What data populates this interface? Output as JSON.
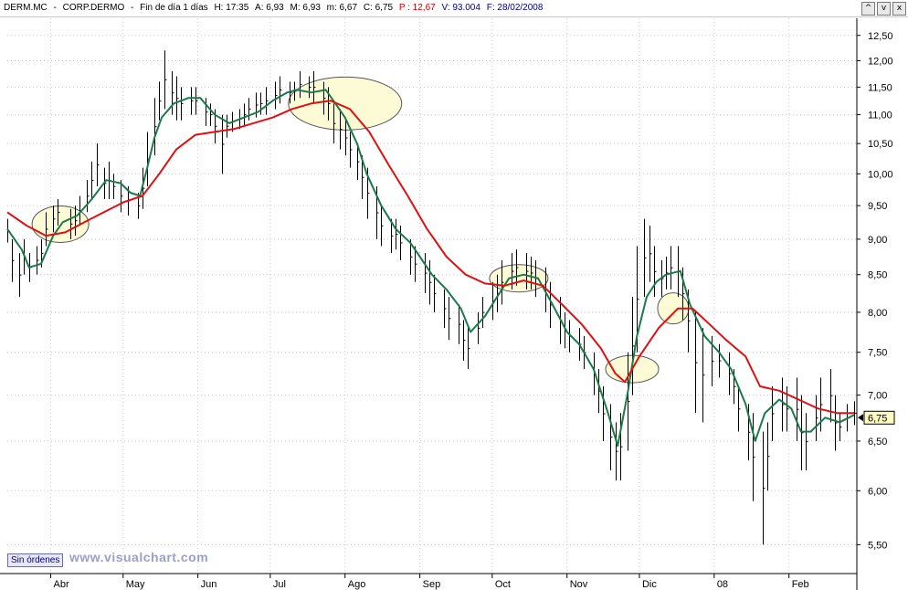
{
  "header": {
    "symbol": "DERM.MC",
    "name": "CORP.DERMO",
    "period": "Fin de día 1 días",
    "time": "H: 17:35",
    "open": "A: 6,93",
    "high": "M: 6,93",
    "low": "m: 6,67",
    "close": "C: 6,75",
    "pct": "P : 12,67",
    "volume": "V: 93.004",
    "date": "F: 28/02/2008"
  },
  "window_controls": [
    "^",
    "v",
    "x"
  ],
  "orders_label": "Sin órdenes",
  "watermark": "www.visualchart.com",
  "colors": {
    "bars": "#000000",
    "ma_fast": "#1a7a4a",
    "ma_slow": "#e01010",
    "ellipse_fill": "#fdfbd6",
    "ellipse_stroke": "#555555",
    "last_price_bg": "#ffffc0",
    "grid": "#c8c8c8"
  },
  "chart_data": {
    "type": "line",
    "y_axis": {
      "ticks": [
        "12,50",
        "12,00",
        "11,50",
        "11,00",
        "10,50",
        "10,00",
        "9,50",
        "9,00",
        "8,50",
        "8,00",
        "7,50",
        "7,00",
        "6,50",
        "6,00",
        "5,50"
      ],
      "tick_values": [
        12.5,
        12.0,
        11.5,
        11.0,
        10.5,
        10.0,
        9.5,
        9.0,
        8.5,
        8.0,
        7.5,
        7.0,
        6.5,
        6.0,
        5.5
      ],
      "scale": "log",
      "range": [
        5.25,
        12.85
      ],
      "position": "right"
    },
    "x_axis": {
      "labels": [
        "Abr",
        "May",
        "Jun",
        "Jul",
        "Ago",
        "Sep",
        "Oct",
        "Nov",
        "Dic",
        "08",
        "Feb"
      ],
      "range": [
        "2007-03-14",
        "2008-02-28"
      ]
    },
    "grid": true,
    "last_price": "6,75",
    "series": [
      {
        "style": "ma_fast",
        "points": [
          [
            "2007-03-14",
            9.15
          ],
          [
            "2007-03-20",
            8.85
          ],
          [
            "2007-03-23",
            8.6
          ],
          [
            "2007-03-28",
            8.65
          ],
          [
            "2007-04-02",
            9.05
          ],
          [
            "2007-04-06",
            9.25
          ],
          [
            "2007-04-12",
            9.35
          ],
          [
            "2007-04-18",
            9.6
          ],
          [
            "2007-04-24",
            9.9
          ],
          [
            "2007-04-30",
            9.85
          ],
          [
            "2007-05-04",
            9.7
          ],
          [
            "2007-05-08",
            9.65
          ],
          [
            "2007-05-11",
            10.1
          ],
          [
            "2007-05-14",
            10.6
          ],
          [
            "2007-05-17",
            10.95
          ],
          [
            "2007-05-22",
            11.2
          ],
          [
            "2007-05-28",
            11.3
          ],
          [
            "2007-06-02",
            11.3
          ],
          [
            "2007-06-08",
            11.0
          ],
          [
            "2007-06-14",
            10.85
          ],
          [
            "2007-06-20",
            10.95
          ],
          [
            "2007-06-26",
            11.05
          ],
          [
            "2007-07-02",
            11.25
          ],
          [
            "2007-07-08",
            11.4
          ],
          [
            "2007-07-12",
            11.45
          ],
          [
            "2007-07-18",
            11.4
          ],
          [
            "2007-07-24",
            11.45
          ],
          [
            "2007-07-28",
            11.2
          ],
          [
            "2007-08-01",
            10.95
          ],
          [
            "2007-08-06",
            10.5
          ],
          [
            "2007-08-10",
            10.0
          ],
          [
            "2007-08-16",
            9.5
          ],
          [
            "2007-08-22",
            9.15
          ],
          [
            "2007-08-28",
            8.95
          ],
          [
            "2007-09-01",
            8.75
          ],
          [
            "2007-09-06",
            8.5
          ],
          [
            "2007-09-12",
            8.3
          ],
          [
            "2007-09-18",
            8.05
          ],
          [
            "2007-09-22",
            7.75
          ],
          [
            "2007-09-28",
            7.95
          ],
          [
            "2007-10-03",
            8.2
          ],
          [
            "2007-10-08",
            8.45
          ],
          [
            "2007-10-14",
            8.5
          ],
          [
            "2007-10-20",
            8.45
          ],
          [
            "2007-10-26",
            8.1
          ],
          [
            "2007-11-01",
            7.75
          ],
          [
            "2007-11-06",
            7.6
          ],
          [
            "2007-11-12",
            7.3
          ],
          [
            "2007-11-18",
            6.8
          ],
          [
            "2007-11-22",
            6.45
          ],
          [
            "2007-11-26",
            7.0
          ],
          [
            "2007-11-30",
            7.7
          ],
          [
            "2007-12-04",
            8.2
          ],
          [
            "2007-12-08",
            8.4
          ],
          [
            "2007-12-12",
            8.5
          ],
          [
            "2007-12-18",
            8.55
          ],
          [
            "2007-12-22",
            8.1
          ],
          [
            "2007-12-28",
            7.7
          ],
          [
            "2008-01-03",
            7.5
          ],
          [
            "2008-01-08",
            7.3
          ],
          [
            "2008-01-14",
            6.9
          ],
          [
            "2008-01-18",
            6.5
          ],
          [
            "2008-01-22",
            6.8
          ],
          [
            "2008-01-28",
            6.95
          ],
          [
            "2008-02-02",
            6.85
          ],
          [
            "2008-02-06",
            6.6
          ],
          [
            "2008-02-10",
            6.6
          ],
          [
            "2008-02-16",
            6.75
          ],
          [
            "2008-02-22",
            6.7
          ],
          [
            "2008-02-28",
            6.78
          ]
        ]
      },
      {
        "style": "ma_slow",
        "points": [
          [
            "2007-03-14",
            9.4
          ],
          [
            "2007-03-22",
            9.2
          ],
          [
            "2007-03-30",
            9.05
          ],
          [
            "2007-04-07",
            9.1
          ],
          [
            "2007-04-15",
            9.25
          ],
          [
            "2007-04-23",
            9.4
          ],
          [
            "2007-05-01",
            9.55
          ],
          [
            "2007-05-09",
            9.65
          ],
          [
            "2007-05-16",
            10.0
          ],
          [
            "2007-05-23",
            10.4
          ],
          [
            "2007-05-31",
            10.65
          ],
          [
            "2007-06-08",
            10.7
          ],
          [
            "2007-06-16",
            10.75
          ],
          [
            "2007-06-24",
            10.85
          ],
          [
            "2007-07-02",
            10.95
          ],
          [
            "2007-07-10",
            11.1
          ],
          [
            "2007-07-18",
            11.2
          ],
          [
            "2007-07-26",
            11.25
          ],
          [
            "2007-08-03",
            11.1
          ],
          [
            "2007-08-11",
            10.7
          ],
          [
            "2007-08-19",
            10.15
          ],
          [
            "2007-08-27",
            9.65
          ],
          [
            "2007-09-04",
            9.15
          ],
          [
            "2007-09-12",
            8.75
          ],
          [
            "2007-09-20",
            8.5
          ],
          [
            "2007-09-28",
            8.38
          ],
          [
            "2007-10-06",
            8.35
          ],
          [
            "2007-10-14",
            8.42
          ],
          [
            "2007-10-22",
            8.35
          ],
          [
            "2007-10-30",
            8.1
          ],
          [
            "2007-11-07",
            7.85
          ],
          [
            "2007-11-15",
            7.55
          ],
          [
            "2007-11-21",
            7.25
          ],
          [
            "2007-11-25",
            7.15
          ],
          [
            "2007-12-01",
            7.45
          ],
          [
            "2007-12-09",
            7.8
          ],
          [
            "2007-12-17",
            8.05
          ],
          [
            "2007-12-23",
            8.05
          ],
          [
            "2007-12-30",
            7.85
          ],
          [
            "2008-01-06",
            7.65
          ],
          [
            "2008-01-14",
            7.45
          ],
          [
            "2008-01-20",
            7.1
          ],
          [
            "2008-01-28",
            7.05
          ],
          [
            "2008-02-05",
            6.95
          ],
          [
            "2008-02-13",
            6.85
          ],
          [
            "2008-02-21",
            6.8
          ],
          [
            "2008-02-28",
            6.8
          ]
        ]
      }
    ],
    "price_bars": [
      [
        "2007-03-14",
        9.3,
        8.95
      ],
      [
        "2007-03-16",
        9.0,
        8.4
      ],
      [
        "2007-03-19",
        8.8,
        8.2
      ],
      [
        "2007-03-21",
        9.0,
        8.5
      ],
      [
        "2007-03-23",
        8.8,
        8.4
      ],
      [
        "2007-03-26",
        8.9,
        8.5
      ],
      [
        "2007-03-28",
        9.0,
        8.6
      ],
      [
        "2007-03-30",
        9.4,
        8.9
      ],
      [
        "2007-04-02",
        9.5,
        9.1
      ],
      [
        "2007-04-04",
        9.6,
        9.2
      ],
      [
        "2007-04-09",
        9.45,
        9.0
      ],
      [
        "2007-04-11",
        9.5,
        9.05
      ],
      [
        "2007-04-13",
        9.65,
        9.2
      ],
      [
        "2007-04-16",
        9.9,
        9.4
      ],
      [
        "2007-04-18",
        10.2,
        9.6
      ],
      [
        "2007-04-20",
        10.5,
        9.8
      ],
      [
        "2007-04-23",
        10.1,
        9.6
      ],
      [
        "2007-04-25",
        10.2,
        9.6
      ],
      [
        "2007-04-27",
        10.0,
        9.6
      ],
      [
        "2007-04-30",
        9.9,
        9.4
      ],
      [
        "2007-05-03",
        9.8,
        9.35
      ],
      [
        "2007-05-07",
        9.7,
        9.3
      ],
      [
        "2007-05-09",
        10.1,
        9.45
      ],
      [
        "2007-05-11",
        10.7,
        9.8
      ],
      [
        "2007-05-14",
        11.3,
        10.3
      ],
      [
        "2007-05-16",
        11.6,
        10.9
      ],
      [
        "2007-05-18",
        12.2,
        11.1
      ],
      [
        "2007-05-21",
        11.8,
        11.0
      ],
      [
        "2007-05-23",
        11.7,
        10.9
      ],
      [
        "2007-05-25",
        11.5,
        10.9
      ],
      [
        "2007-05-29",
        11.5,
        11.0
      ],
      [
        "2007-05-31",
        11.5,
        11.0
      ],
      [
        "2007-06-04",
        11.3,
        10.8
      ],
      [
        "2007-06-06",
        11.2,
        10.8
      ],
      [
        "2007-06-08",
        11.1,
        10.5
      ],
      [
        "2007-06-11",
        11.0,
        10.0
      ],
      [
        "2007-06-13",
        11.0,
        10.6
      ],
      [
        "2007-06-15",
        11.05,
        10.7
      ],
      [
        "2007-06-18",
        11.1,
        10.75
      ],
      [
        "2007-06-20",
        11.2,
        10.8
      ],
      [
        "2007-06-22",
        11.3,
        10.9
      ],
      [
        "2007-06-25",
        11.4,
        10.95
      ],
      [
        "2007-06-27",
        11.4,
        11.0
      ],
      [
        "2007-06-29",
        11.5,
        11.0
      ],
      [
        "2007-07-03",
        11.6,
        11.1
      ],
      [
        "2007-07-05",
        11.7,
        11.2
      ],
      [
        "2007-07-09",
        11.6,
        11.2
      ],
      [
        "2007-07-11",
        11.6,
        11.25
      ],
      [
        "2007-07-13",
        11.8,
        11.3
      ],
      [
        "2007-07-17",
        11.7,
        11.3
      ],
      [
        "2007-07-19",
        11.8,
        11.2
      ],
      [
        "2007-07-23",
        11.6,
        11.0
      ],
      [
        "2007-07-25",
        11.5,
        10.9
      ],
      [
        "2007-07-27",
        11.2,
        10.5
      ],
      [
        "2007-07-30",
        11.1,
        10.4
      ],
      [
        "2007-08-01",
        10.9,
        10.3
      ],
      [
        "2007-08-03",
        10.7,
        10.1
      ],
      [
        "2007-08-06",
        10.5,
        9.9
      ],
      [
        "2007-08-08",
        10.3,
        9.6
      ],
      [
        "2007-08-10",
        10.1,
        9.3
      ],
      [
        "2007-08-14",
        9.8,
        9.0
      ],
      [
        "2007-08-16",
        9.5,
        8.9
      ],
      [
        "2007-08-20",
        9.3,
        8.8
      ],
      [
        "2007-08-22",
        9.3,
        8.85
      ],
      [
        "2007-08-24",
        9.2,
        8.7
      ],
      [
        "2007-08-28",
        9.0,
        8.5
      ],
      [
        "2007-08-30",
        8.9,
        8.4
      ],
      [
        "2007-09-03",
        8.8,
        8.25
      ],
      [
        "2007-09-05",
        8.7,
        8.1
      ],
      [
        "2007-09-07",
        8.5,
        8.0
      ],
      [
        "2007-09-11",
        8.3,
        7.8
      ],
      [
        "2007-09-13",
        8.2,
        7.65
      ],
      [
        "2007-09-17",
        8.1,
        7.6
      ],
      [
        "2007-09-19",
        7.9,
        7.4
      ],
      [
        "2007-09-21",
        7.8,
        7.3
      ],
      [
        "2007-09-25",
        8.0,
        7.6
      ],
      [
        "2007-09-27",
        8.2,
        7.8
      ],
      [
        "2007-10-01",
        8.4,
        7.9
      ],
      [
        "2007-10-03",
        8.5,
        8.0
      ],
      [
        "2007-10-05",
        8.7,
        8.1
      ],
      [
        "2007-10-09",
        8.8,
        8.3
      ],
      [
        "2007-10-11",
        8.85,
        8.35
      ],
      [
        "2007-10-15",
        8.8,
        8.3
      ],
      [
        "2007-10-17",
        8.75,
        8.3
      ],
      [
        "2007-10-19",
        8.7,
        8.2
      ],
      [
        "2007-10-23",
        8.6,
        8.0
      ],
      [
        "2007-10-25",
        8.4,
        7.8
      ],
      [
        "2007-10-29",
        8.2,
        7.6
      ],
      [
        "2007-10-31",
        8.0,
        7.55
      ],
      [
        "2007-11-02",
        7.9,
        7.5
      ],
      [
        "2007-11-06",
        7.8,
        7.4
      ],
      [
        "2007-11-08",
        7.7,
        7.3
      ],
      [
        "2007-11-12",
        7.5,
        7.0
      ],
      [
        "2007-11-14",
        7.3,
        6.8
      ],
      [
        "2007-11-16",
        7.1,
        6.5
      ],
      [
        "2007-11-19",
        6.9,
        6.2
      ],
      [
        "2007-11-21",
        6.7,
        6.1
      ],
      [
        "2007-11-23",
        6.8,
        6.1
      ],
      [
        "2007-11-26",
        7.5,
        6.4
      ],
      [
        "2007-11-28",
        8.2,
        7.0
      ],
      [
        "2007-11-30",
        8.9,
        7.5
      ],
      [
        "2007-12-03",
        9.3,
        8.2
      ],
      [
        "2007-12-05",
        9.2,
        8.4
      ],
      [
        "2007-12-07",
        8.9,
        8.2
      ],
      [
        "2007-12-10",
        8.7,
        8.2
      ],
      [
        "2007-12-12",
        8.75,
        8.3
      ],
      [
        "2007-12-14",
        8.9,
        8.3
      ],
      [
        "2007-12-17",
        8.9,
        8.2
      ],
      [
        "2007-12-19",
        8.6,
        7.9
      ],
      [
        "2007-12-21",
        8.3,
        7.5
      ],
      [
        "2007-12-24",
        8.0,
        6.8
      ],
      [
        "2007-12-27",
        7.8,
        6.7
      ],
      [
        "2007-12-31",
        7.7,
        7.1
      ],
      [
        "2008-01-03",
        7.6,
        7.2
      ],
      [
        "2008-01-07",
        7.5,
        7.0
      ],
      [
        "2008-01-09",
        7.3,
        6.9
      ],
      [
        "2008-01-11",
        7.1,
        6.6
      ],
      [
        "2008-01-15",
        6.9,
        6.3
      ],
      [
        "2008-01-17",
        6.8,
        5.9
      ],
      [
        "2008-01-21",
        6.6,
        5.5
      ],
      [
        "2008-01-23",
        6.7,
        6.0
      ],
      [
        "2008-01-25",
        7.1,
        6.5
      ],
      [
        "2008-01-29",
        7.2,
        6.6
      ],
      [
        "2008-01-31",
        7.1,
        6.6
      ],
      [
        "2008-02-04",
        7.2,
        6.5
      ],
      [
        "2008-02-06",
        7.0,
        6.2
      ],
      [
        "2008-02-08",
        6.8,
        6.2
      ],
      [
        "2008-02-12",
        7.0,
        6.5
      ],
      [
        "2008-02-14",
        7.2,
        6.6
      ],
      [
        "2008-02-18",
        7.3,
        6.7
      ],
      [
        "2008-02-20",
        7.0,
        6.4
      ],
      [
        "2008-02-22",
        6.8,
        6.5
      ],
      [
        "2008-02-25",
        6.9,
        6.6
      ],
      [
        "2008-02-28",
        6.93,
        6.67
      ]
    ],
    "highlight_ellipses": [
      {
        "date": "2007-04-05",
        "price": 9.22
      },
      {
        "date": "2007-08-01",
        "price": 11.2
      },
      {
        "date": "2007-10-12",
        "price": 8.45
      },
      {
        "date": "2007-11-28",
        "price": 7.3
      },
      {
        "date": "2007-12-15",
        "price": 8.05
      }
    ]
  }
}
